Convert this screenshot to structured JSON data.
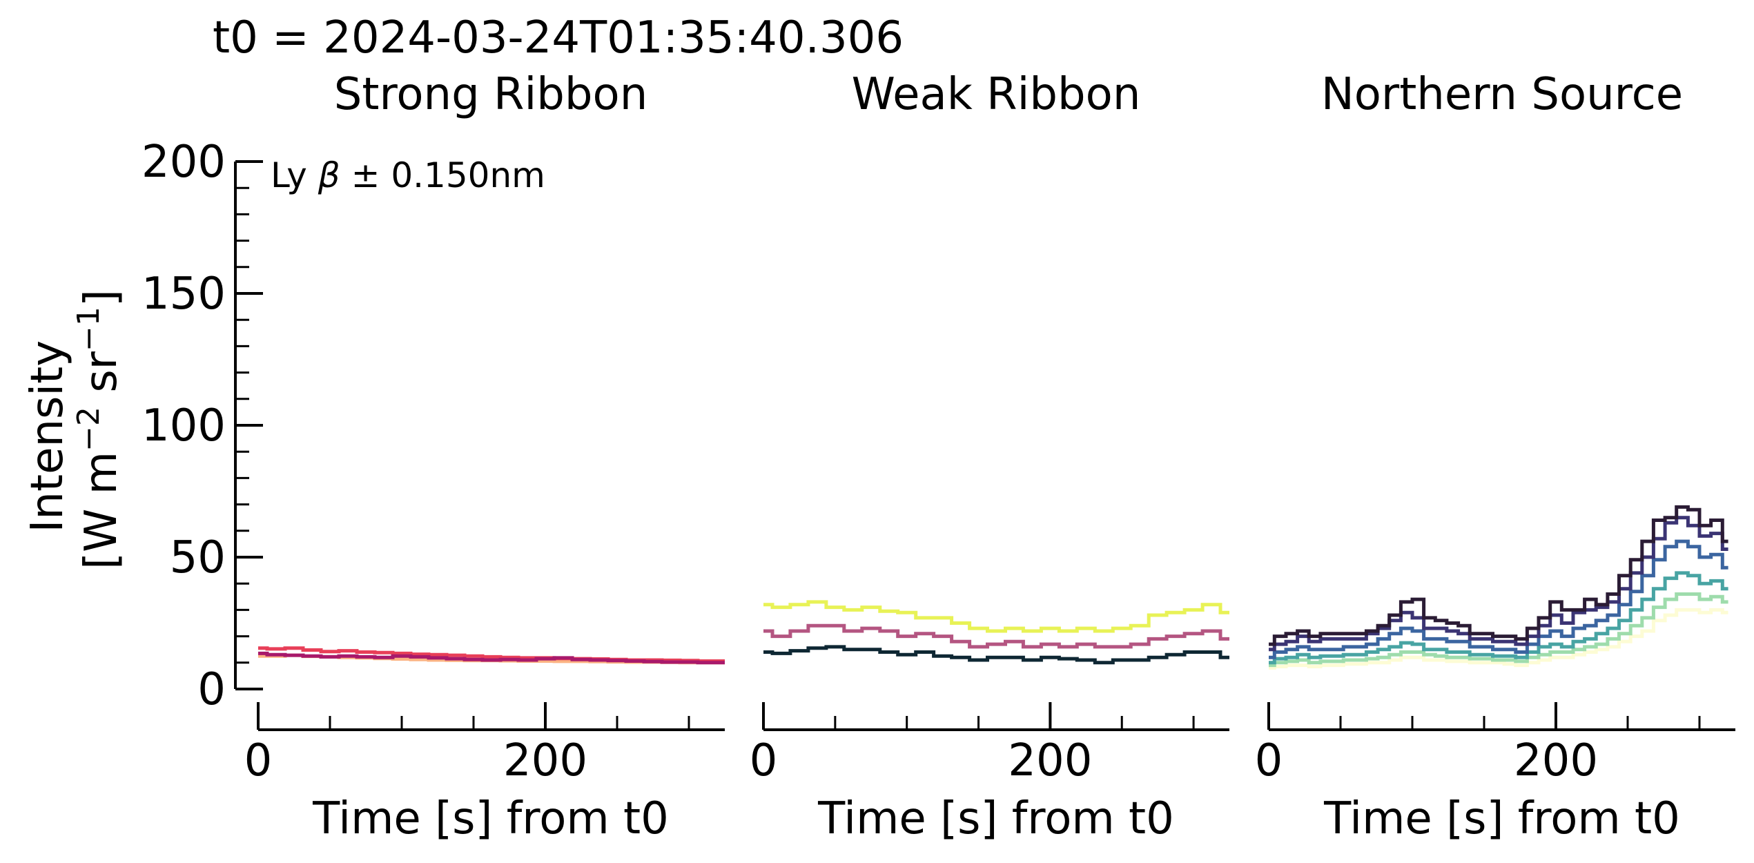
{
  "figure": {
    "suptitle": "t0 = 2024-03-24T01:35:40.306",
    "annotation_prefix": "Ly ",
    "annotation_greek": "β",
    "annotation_suffix": " ±  0.150nm",
    "ylabel_line1": "Intensity",
    "ylabel_line2_prefix": "[W m",
    "ylabel_sup1": "−2",
    "ylabel_line2_mid": " sr",
    "ylabel_sup2": "−1",
    "ylabel_line2_suffix": "]"
  },
  "chart_data": [
    {
      "type": "line",
      "drawstyle": "steps",
      "title": "Strong Ribbon",
      "xlabel": "Time [s] from t0",
      "xlim": [
        0,
        325
      ],
      "ylim": [
        0,
        200
      ],
      "xticks": [
        0,
        200
      ],
      "yticks": [
        0,
        50,
        100,
        150,
        200
      ],
      "series": [
        {
          "color": "#fbb383",
          "x": [
            0,
            12.5,
            25,
            37.5,
            50,
            62.5,
            75,
            87.5,
            100,
            112.5,
            125,
            137.5,
            150,
            162.5,
            175,
            187.5,
            200,
            212.5,
            225,
            237.5,
            250,
            262.5,
            275,
            287.5,
            300,
            312.5,
            325
          ],
          "y": [
            12.5,
            12.5,
            12.8,
            12.4,
            12.2,
            12,
            11.8,
            11.6,
            11.4,
            11.2,
            11,
            10.9,
            10.8,
            10.8,
            10.7,
            10.6,
            10.6,
            10.5,
            10.5,
            10.4,
            10.3,
            10.2,
            10.2,
            10.1,
            10,
            10,
            10
          ]
        },
        {
          "color": "#e83f58",
          "x": [
            0,
            12.5,
            25,
            37.5,
            50,
            62.5,
            75,
            87.5,
            100,
            112.5,
            125,
            137.5,
            150,
            162.5,
            175,
            187.5,
            200,
            212.5,
            225,
            237.5,
            250,
            262.5,
            275,
            287.5,
            300,
            312.5,
            325
          ],
          "y": [
            15.5,
            15.2,
            15.5,
            14.8,
            14.2,
            14.5,
            14,
            13.8,
            13.5,
            13.2,
            13,
            12.8,
            12.5,
            12.2,
            12,
            11.8,
            11.8,
            11.6,
            11.5,
            11.4,
            11.2,
            11,
            11,
            10.9,
            10.8,
            10.6,
            10.6
          ]
        },
        {
          "color": "#a8196b",
          "x": [
            0,
            12.5,
            25,
            37.5,
            50,
            62.5,
            75,
            87.5,
            100,
            112.5,
            125,
            137.5,
            150,
            162.5,
            175,
            187.5,
            200,
            212.5,
            225,
            237.5,
            250,
            262.5,
            275,
            287.5,
            300,
            312.5,
            325
          ],
          "y": [
            13.5,
            13,
            12.8,
            12.5,
            12.2,
            12.5,
            12.2,
            12,
            12.5,
            12.2,
            11.8,
            11.5,
            11.2,
            11,
            11.2,
            11,
            11.5,
            11.8,
            11.2,
            11,
            10.8,
            10.6,
            10.4,
            10.2,
            10.2,
            10,
            10
          ]
        }
      ]
    },
    {
      "type": "line",
      "drawstyle": "steps",
      "title": "Weak Ribbon",
      "xlabel": "Time [s] from t0",
      "xlim": [
        0,
        325
      ],
      "ylim": [
        0,
        200
      ],
      "xticks": [
        0,
        200
      ],
      "series": [
        {
          "color": "#e8f256",
          "x": [
            0,
            12.5,
            25,
            37.5,
            50,
            62.5,
            75,
            87.5,
            100,
            112.5,
            125,
            137.5,
            150,
            162.5,
            175,
            187.5,
            200,
            212.5,
            225,
            237.5,
            250,
            262.5,
            275,
            287.5,
            300,
            312.5,
            325
          ],
          "y": [
            32,
            31,
            32,
            33,
            31,
            30,
            31,
            29.5,
            29,
            27,
            27,
            25,
            23,
            22,
            23,
            22,
            23,
            22,
            23,
            22,
            23,
            24,
            28,
            29,
            30,
            32,
            29
          ]
        },
        {
          "color": "#b45581",
          "x": [
            0,
            12.5,
            25,
            37.5,
            50,
            62.5,
            75,
            87.5,
            100,
            112.5,
            125,
            137.5,
            150,
            162.5,
            175,
            187.5,
            200,
            212.5,
            225,
            237.5,
            250,
            262.5,
            275,
            287.5,
            300,
            312.5,
            325
          ],
          "y": [
            22,
            20,
            22,
            24,
            24,
            22,
            23,
            22,
            20,
            21,
            20,
            18,
            16,
            17,
            18,
            16,
            17,
            16,
            17,
            16,
            16,
            17,
            19,
            20,
            21,
            22,
            19
          ]
        },
        {
          "color": "#0e2733",
          "x": [
            0,
            12.5,
            25,
            37.5,
            50,
            62.5,
            75,
            87.5,
            100,
            112.5,
            125,
            137.5,
            150,
            162.5,
            175,
            187.5,
            200,
            212.5,
            225,
            237.5,
            250,
            262.5,
            275,
            287.5,
            300,
            312.5,
            325
          ],
          "y": [
            14,
            13.5,
            14.5,
            15.5,
            16,
            15,
            15,
            14,
            13,
            14,
            12.5,
            12,
            11,
            12,
            12,
            11,
            12,
            11.5,
            11,
            10,
            11,
            11,
            12,
            13,
            14,
            14,
            12
          ]
        }
      ]
    },
    {
      "type": "line",
      "drawstyle": "steps",
      "title": "Northern Source",
      "xlabel": "Time [s] from t0",
      "xlim": [
        0,
        325
      ],
      "ylim": [
        0,
        200
      ],
      "xticks": [
        0,
        200
      ],
      "series": [
        {
          "color": "#fdfcd5",
          "x": [
            0,
            8,
            16,
            24,
            32,
            40,
            48,
            56,
            64,
            72,
            80,
            88,
            96,
            104,
            112,
            120,
            128,
            136,
            144,
            152,
            160,
            168,
            176,
            184,
            192,
            200,
            208,
            216,
            224,
            232,
            240,
            248,
            256,
            264,
            272,
            280,
            288,
            296,
            304,
            312,
            320
          ],
          "y": [
            8,
            8.5,
            9,
            9,
            8.5,
            9,
            9,
            9.5,
            9.5,
            10,
            10,
            11,
            12,
            12,
            11,
            11,
            10.5,
            10.5,
            10,
            10,
            10,
            9.5,
            9,
            10,
            11,
            12,
            12,
            13,
            14,
            15,
            16,
            18,
            20,
            22,
            26,
            28,
            30,
            30,
            29,
            30,
            29
          ]
        },
        {
          "color": "#9edcac",
          "x": [
            0,
            8,
            16,
            24,
            32,
            40,
            48,
            56,
            64,
            72,
            80,
            88,
            96,
            104,
            112,
            120,
            128,
            136,
            144,
            152,
            160,
            168,
            176,
            184,
            192,
            200,
            208,
            216,
            224,
            232,
            240,
            248,
            256,
            264,
            272,
            280,
            288,
            296,
            304,
            312,
            320
          ],
          "y": [
            9,
            10,
            10.5,
            11,
            10,
            10.5,
            10.5,
            11,
            11,
            11.5,
            12,
            13,
            14,
            14,
            13,
            12.5,
            12,
            12,
            11.5,
            11.5,
            11,
            11,
            10.5,
            12,
            13,
            14,
            14,
            15,
            16,
            17,
            19,
            21,
            24,
            27,
            31,
            34,
            36,
            36,
            34,
            35,
            33
          ]
        },
        {
          "color": "#48a4a3",
          "x": [
            0,
            8,
            16,
            24,
            32,
            40,
            48,
            56,
            64,
            72,
            80,
            88,
            96,
            104,
            112,
            120,
            128,
            136,
            144,
            152,
            160,
            168,
            176,
            184,
            192,
            200,
            208,
            216,
            224,
            232,
            240,
            248,
            256,
            264,
            272,
            280,
            288,
            296,
            304,
            312,
            320
          ],
          "y": [
            10,
            11.5,
            12,
            13,
            12,
            12.5,
            12.5,
            13,
            13,
            14,
            15,
            16,
            17.5,
            17,
            15,
            15,
            14,
            14,
            13,
            13,
            12.5,
            12.5,
            12,
            14,
            16,
            17,
            16,
            18,
            19,
            21,
            23,
            26,
            30,
            34,
            38,
            42,
            44,
            43,
            40,
            41,
            38
          ]
        },
        {
          "color": "#3b65a0",
          "x": [
            0,
            8,
            16,
            24,
            32,
            40,
            48,
            56,
            64,
            72,
            80,
            88,
            96,
            104,
            112,
            120,
            128,
            136,
            144,
            152,
            160,
            168,
            176,
            184,
            192,
            200,
            208,
            216,
            224,
            232,
            240,
            248,
            256,
            264,
            272,
            280,
            288,
            296,
            304,
            312,
            320
          ],
          "y": [
            12,
            14,
            15,
            16,
            15,
            15,
            15,
            16,
            16,
            17,
            19,
            21,
            23,
            22,
            19,
            19,
            18,
            18,
            16,
            16,
            15,
            15,
            14,
            17,
            20,
            22,
            20,
            23,
            24,
            26,
            28,
            32,
            37,
            43,
            49,
            54,
            56,
            54,
            50,
            51,
            46
          ]
        },
        {
          "color": "#3b3474",
          "x": [
            0,
            8,
            16,
            24,
            32,
            40,
            48,
            56,
            64,
            72,
            80,
            88,
            96,
            104,
            112,
            120,
            128,
            136,
            144,
            152,
            160,
            168,
            176,
            184,
            192,
            200,
            208,
            216,
            224,
            232,
            240,
            248,
            256,
            264,
            272,
            280,
            288,
            296,
            304,
            312,
            320
          ],
          "y": [
            15,
            17,
            18,
            20,
            18,
            19,
            19,
            19,
            19,
            21,
            23,
            26,
            29,
            27,
            23,
            23,
            22,
            21,
            19,
            19,
            18,
            18,
            17,
            20,
            24,
            28,
            25,
            29,
            30,
            31,
            33,
            38,
            44,
            50,
            57,
            63,
            65,
            62,
            58,
            59,
            53
          ]
        },
        {
          "color": "#2b1c35",
          "x": [
            0,
            8,
            16,
            24,
            32,
            40,
            48,
            56,
            64,
            72,
            80,
            88,
            96,
            104,
            112,
            120,
            128,
            136,
            144,
            152,
            160,
            168,
            176,
            184,
            192,
            200,
            208,
            216,
            224,
            232,
            240,
            248,
            256,
            264,
            272,
            280,
            288,
            296,
            304,
            312,
            320
          ],
          "y": [
            17,
            20,
            21,
            22,
            20,
            21,
            21,
            21,
            21,
            22,
            24,
            28,
            33,
            34,
            27,
            26,
            25,
            24,
            21,
            21,
            20,
            20,
            19,
            23,
            27,
            33,
            30,
            30,
            34,
            32,
            36,
            43,
            49,
            56,
            64,
            65,
            69,
            68,
            62,
            64,
            56
          ]
        }
      ]
    }
  ]
}
